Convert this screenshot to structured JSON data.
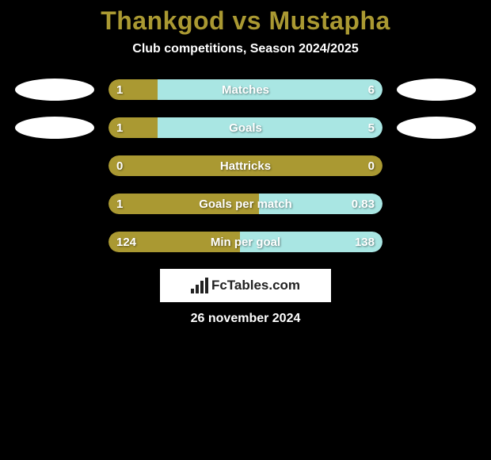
{
  "title": "Thankgod vs Mustapha",
  "subtitle": "Club competitions, Season 2024/2025",
  "date": "26 november 2024",
  "brand": "FcTables.com",
  "colors": {
    "olive": "#aa9932",
    "teal": "#a9e6e3",
    "bg": "#000000",
    "white": "#ffffff"
  },
  "rows": [
    {
      "label": "Matches",
      "left_value": "1",
      "right_value": "6",
      "left_pct": 18,
      "right_pct": 82,
      "left_color": "#aa9932",
      "right_color": "#a9e6e3",
      "show_avatars": true
    },
    {
      "label": "Goals",
      "left_value": "1",
      "right_value": "5",
      "left_pct": 18,
      "right_pct": 82,
      "left_color": "#aa9932",
      "right_color": "#a9e6e3",
      "show_avatars": true
    },
    {
      "label": "Hattricks",
      "left_value": "0",
      "right_value": "0",
      "left_pct": 100,
      "right_pct": 0,
      "left_color": "#aa9932",
      "right_color": "#a9e6e3",
      "show_avatars": false
    },
    {
      "label": "Goals per match",
      "left_value": "1",
      "right_value": "0.83",
      "left_pct": 55,
      "right_pct": 45,
      "left_color": "#aa9932",
      "right_color": "#a9e6e3",
      "show_avatars": false
    },
    {
      "label": "Min per goal",
      "left_value": "124",
      "right_value": "138",
      "left_pct": 48,
      "right_pct": 52,
      "left_color": "#aa9932",
      "right_color": "#a9e6e3",
      "show_avatars": false
    }
  ]
}
